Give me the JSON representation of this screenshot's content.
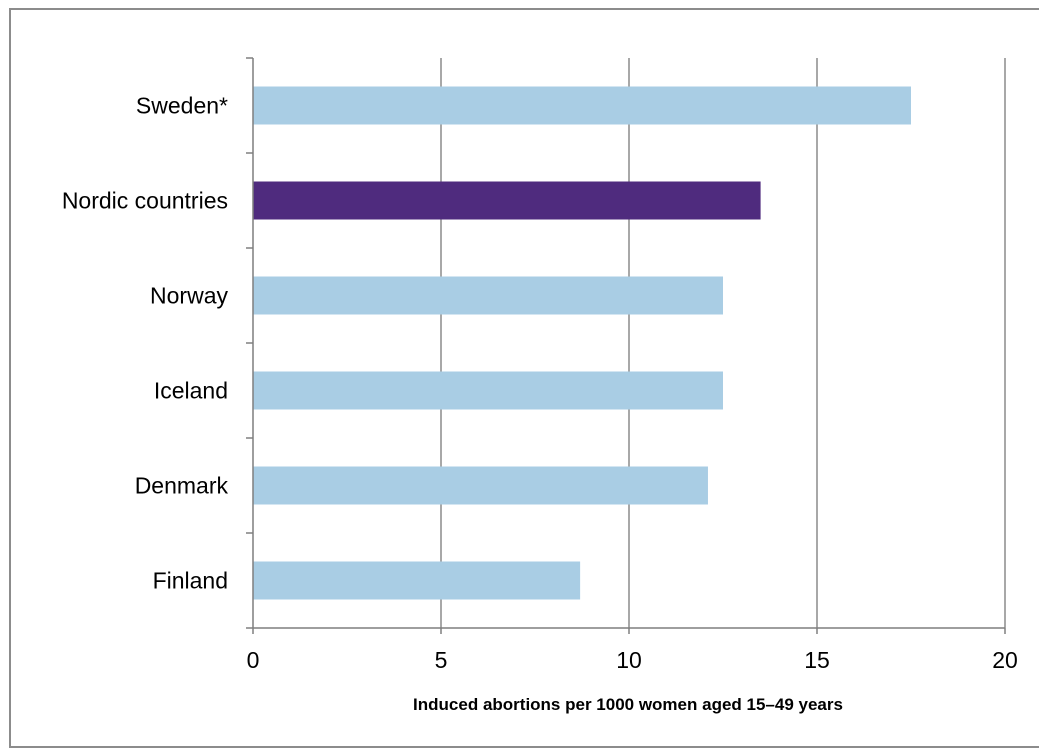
{
  "chart_data": {
    "type": "bar",
    "orientation": "horizontal",
    "categories": [
      "Sweden*",
      "Nordic countries",
      "Norway",
      "Iceland",
      "Denmark",
      "Finland"
    ],
    "values": [
      17.5,
      13.5,
      12.5,
      12.5,
      12.1,
      8.7
    ],
    "highlight": "Nordic countries",
    "colors": {
      "default": "#a9cde4",
      "highlight": "#4f2b7e",
      "grid": "#8c8c8c",
      "axis": "#7f7f7f"
    },
    "title": "",
    "xlabel": "Induced abortions per 1000 women aged 15–49 years",
    "ylabel": "",
    "xlim": [
      0,
      20
    ],
    "xticks": [
      "0",
      "5",
      "10",
      "15",
      "20"
    ],
    "grid": "vertical"
  }
}
